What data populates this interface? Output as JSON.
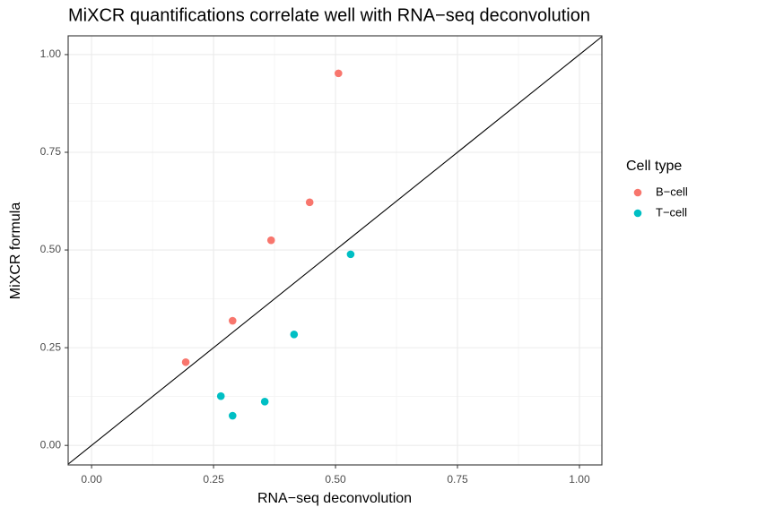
{
  "chart_data": {
    "type": "scatter",
    "title": "MiXCR quantifications correlate well with RNA−seq deconvolution",
    "x_label": "RNA−seq deconvolution",
    "y_label": "MiXCR formula",
    "legend_title": "Cell type",
    "legend_position": "right",
    "grid": true,
    "identity_line": true,
    "xlim": [
      -0.048,
      1.046
    ],
    "ylim": [
      -0.05,
      1.048
    ],
    "xticks": [
      {
        "value": 0,
        "label": "0.00"
      },
      {
        "value": 0.25,
        "label": "0.25"
      },
      {
        "value": 0.5,
        "label": "0.50"
      },
      {
        "value": 0.75,
        "label": "0.75"
      },
      {
        "value": 1,
        "label": "1.00"
      }
    ],
    "yticks": [
      {
        "value": 0,
        "label": "0.00"
      },
      {
        "value": 0.25,
        "label": "0.25"
      },
      {
        "value": 0.5,
        "label": "0.50"
      },
      {
        "value": 0.75,
        "label": "0.75"
      },
      {
        "value": 1,
        "label": "1.00"
      }
    ],
    "xminor": [
      0.125,
      0.375,
      0.625,
      0.875
    ],
    "yminor": [
      0.125,
      0.375,
      0.625,
      0.875
    ],
    "series": [
      {
        "name": "B−cell",
        "color": "#F8766D",
        "x": [
          0.193,
          0.289,
          0.368,
          0.447,
          0.506
        ],
        "values": [
          0.213,
          0.319,
          0.525,
          0.622,
          0.952
        ]
      },
      {
        "name": "T−cell",
        "color": "#00BFC4",
        "x": [
          0.265,
          0.289,
          0.355,
          0.415,
          0.531
        ],
        "values": [
          0.126,
          0.076,
          0.112,
          0.284,
          0.489
        ]
      }
    ]
  }
}
